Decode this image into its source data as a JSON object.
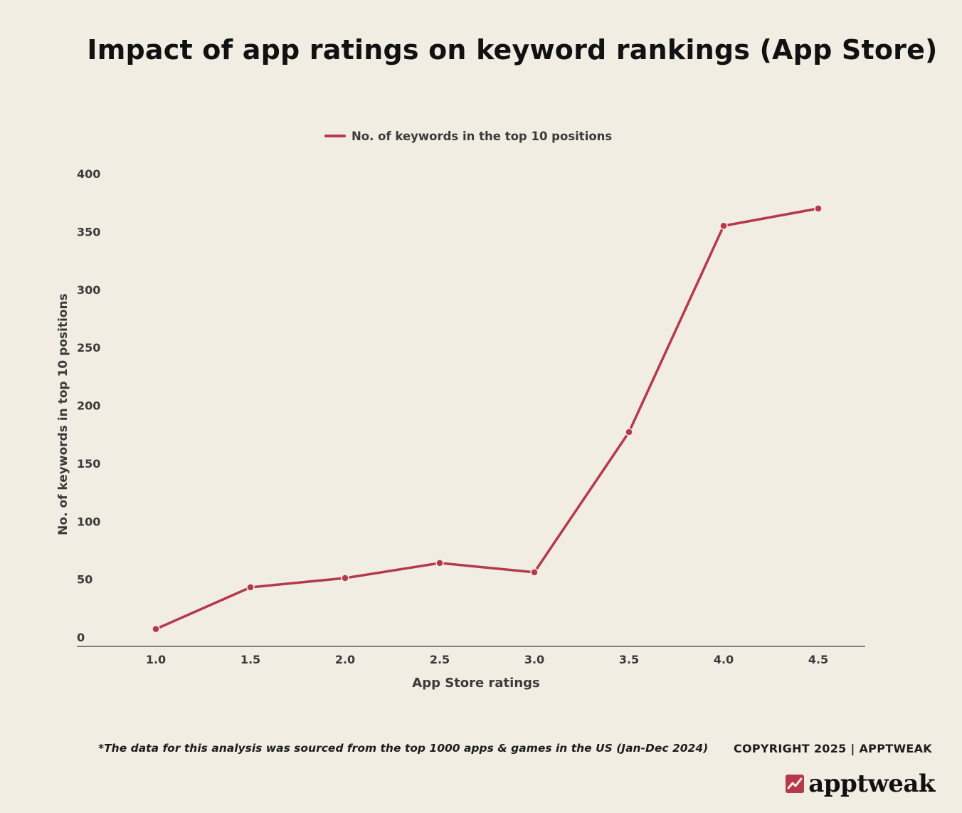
{
  "colors": {
    "background": "#f2ede3",
    "series": "#b5394a",
    "axis": "#5a5a5a",
    "tick_text": "#3a3a3a"
  },
  "footer": {
    "note": "*The data for this analysis was sourced from the top 1000 apps & games in the US (Jan-Dec 2024)",
    "copyright": "COPYRIGHT 2025 | APPTWEAK",
    "brand": "apptweak",
    "brand_icon": "apptweak-logo-icon"
  },
  "chart_data": {
    "type": "line",
    "title": "Impact of app ratings on keyword rankings (App Store)",
    "xlabel": "App Store ratings",
    "ylabel": "No. of keywords in top 10 positions",
    "x": [
      "1.0",
      "1.5",
      "2.0",
      "2.5",
      "3.0",
      "3.5",
      "4.0",
      "4.5"
    ],
    "series": [
      {
        "name": "No. of keywords in the top 10 positions",
        "values": [
          7,
          43,
          51,
          64,
          56,
          177,
          355,
          370
        ]
      }
    ],
    "ylim": [
      0,
      400
    ],
    "yticks": [
      "0",
      "50",
      "100",
      "150",
      "200",
      "250",
      "300",
      "350",
      "400"
    ],
    "legend_position": "top-center",
    "grid": false
  }
}
